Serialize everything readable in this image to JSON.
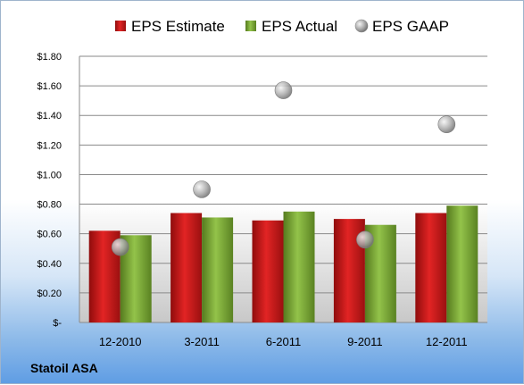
{
  "company_name": "Statoil ASA",
  "chart_data": {
    "type": "bar",
    "categories": [
      "12-2010",
      "3-2011",
      "6-2011",
      "9-2011",
      "12-2011"
    ],
    "series": [
      {
        "name": "EPS Estimate",
        "kind": "bar",
        "color": "#e02020",
        "values": [
          0.62,
          0.74,
          0.69,
          0.7,
          0.74
        ]
      },
      {
        "name": "EPS Actual",
        "kind": "bar",
        "color": "#8cc63f",
        "values": [
          0.59,
          0.71,
          0.75,
          0.66,
          0.79
        ]
      },
      {
        "name": "EPS GAAP",
        "kind": "scatter",
        "color": "#a0a0a0",
        "values": [
          0.51,
          0.9,
          1.57,
          0.56,
          1.34
        ]
      }
    ],
    "y_ticks": [
      "$-",
      "$0.20",
      "$0.40",
      "$0.60",
      "$0.80",
      "$1.00",
      "$1.20",
      "$1.40",
      "$1.60",
      "$1.80"
    ],
    "ylim": [
      0,
      1.8
    ],
    "grid": true,
    "legend_position": "top"
  }
}
